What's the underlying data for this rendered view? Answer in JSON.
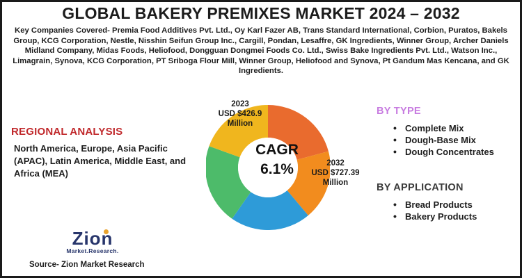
{
  "title": "GLOBAL BAKERY PREMIXES MARKET 2024 – 2032",
  "companies": "Key Companies Covered- Premia Food Additives Pvt. Ltd., Oy Karl Fazer AB, Trans Standard International, Corbion, Puratos, Bakels Group, KCG Corporation, Nestle, Nisshin Seifun Group Inc., Cargill, Pondan, Lesaffre, GK Ingredients, Winner Group, Archer Daniels Midland Company, Midas Foods, Heliofood, Dongguan Dongmei Foods Co. Ltd., Swiss Bake Ingredients Pvt. Ltd., Watson Inc., Limagrain, Synova, KCG Corporation, PT Sriboga Flour Mill, Winner Group, Heliofood and Synova, Pt Gandum Mas Kencana, and GK Ingredients.",
  "regional": {
    "title": "REGIONAL ANALYSIS",
    "text": "North America, Europe, Asia Pacific (APAC), Latin America, Middle East, and Africa (MEA)"
  },
  "by_type": {
    "title": "BY TYPE",
    "items": [
      "Complete Mix",
      "Dough-Base Mix",
      "Dough Concentrates"
    ]
  },
  "by_application": {
    "title": "BY APPLICATION",
    "items": [
      "Bread Products",
      "Bakery Products"
    ]
  },
  "donut": {
    "label_2023_year": "2023",
    "label_2023_value": "USD $426.9",
    "label_2023_unit": "Million",
    "label_2032_year": "2032",
    "label_2032_value": "USD $727.39",
    "label_2032_unit": "Million",
    "cagr_label": "CAGR",
    "cagr_value": "6.1%",
    "segments": [
      {
        "color": "#e96b2e"
      },
      {
        "color": "#f28c1e"
      },
      {
        "color": "#2e9bd8"
      },
      {
        "color": "#4dbb6a"
      },
      {
        "color": "#f0b61e"
      }
    ]
  },
  "logo": {
    "word": "Zion",
    "sub": "Market.Research."
  },
  "source": "Source- Zion Market Research"
}
